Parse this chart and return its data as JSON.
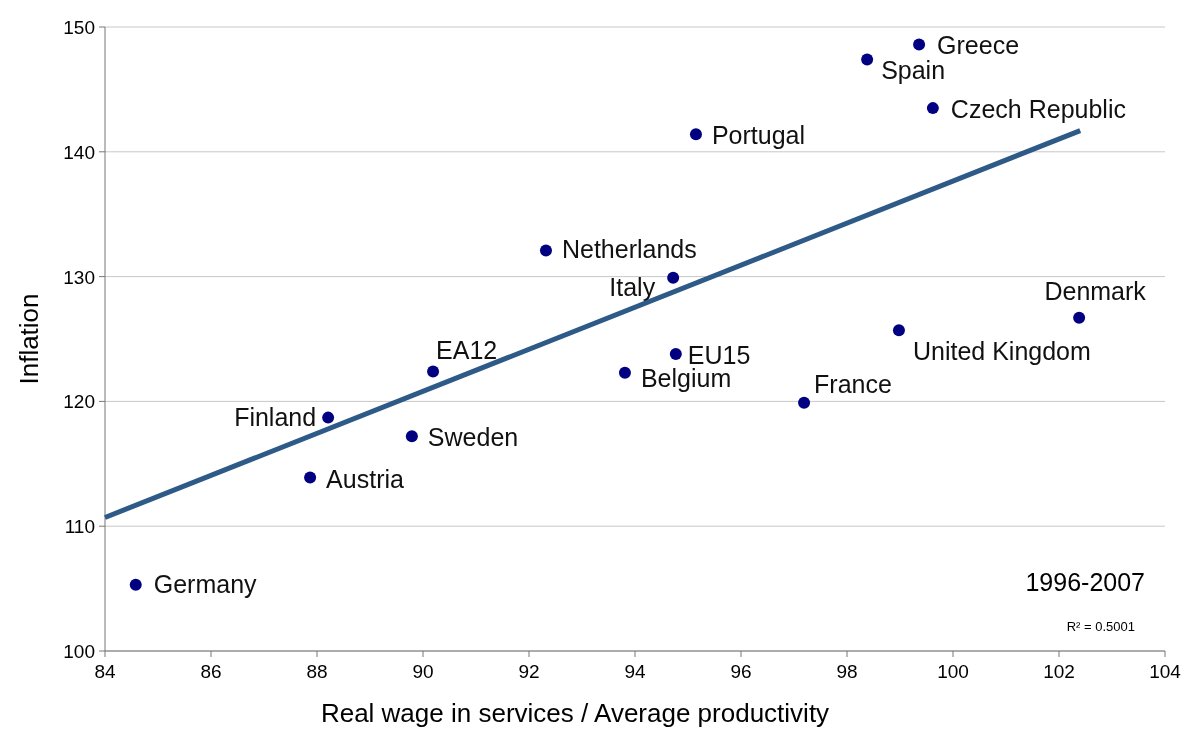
{
  "chart_data": {
    "type": "scatter",
    "xlabel": "Real wage in services / Average productivity",
    "ylabel": "Inflation",
    "xlim": [
      84,
      104
    ],
    "xticks": [
      84,
      86,
      88,
      90,
      92,
      94,
      96,
      98,
      100,
      102,
      104
    ],
    "ylim": [
      100,
      150
    ],
    "yticks": [
      100,
      110,
      120,
      130,
      140,
      150
    ],
    "grid": "y",
    "marker": "circle",
    "series": [
      {
        "name": "Germany",
        "color": "#000080",
        "x": [
          84.58
        ],
        "values": [
          105.3
        ]
      },
      {
        "name": "Austria",
        "color": "#000080",
        "x": [
          87.87
        ],
        "values": [
          113.9
        ]
      },
      {
        "name": "Finland",
        "color": "#000080",
        "x": [
          88.21
        ],
        "values": [
          118.7
        ]
      },
      {
        "name": "Sweden",
        "color": "#000080",
        "x": [
          89.79
        ],
        "values": [
          117.2
        ]
      },
      {
        "name": "EA12",
        "color": "#000080",
        "x": [
          90.19
        ],
        "values": [
          122.4
        ]
      },
      {
        "name": "Netherlands",
        "color": "#000080",
        "x": [
          92.32
        ],
        "values": [
          132.1
        ]
      },
      {
        "name": "Belgium",
        "color": "#000080",
        "x": [
          93.81
        ],
        "values": [
          122.3
        ]
      },
      {
        "name": "Italy",
        "color": "#000080",
        "x": [
          94.72
        ],
        "values": [
          129.9
        ]
      },
      {
        "name": "EU15",
        "color": "#000080",
        "x": [
          94.77
        ],
        "values": [
          123.8
        ]
      },
      {
        "name": "Portugal",
        "color": "#000080",
        "x": [
          95.15
        ],
        "values": [
          141.4
        ]
      },
      {
        "name": "France",
        "color": "#000080",
        "x": [
          97.19
        ],
        "values": [
          119.9
        ]
      },
      {
        "name": "United Kingdom",
        "color": "#000080",
        "x": [
          98.98
        ],
        "values": [
          125.7
        ]
      },
      {
        "name": "Spain",
        "color": "#000080",
        "x": [
          98.38
        ],
        "values": [
          147.4
        ]
      },
      {
        "name": "Greece",
        "color": "#000080",
        "x": [
          99.36
        ],
        "values": [
          148.6
        ]
      },
      {
        "name": "Czech Republic",
        "color": "#000080",
        "x": [
          99.62
        ],
        "values": [
          143.5
        ]
      },
      {
        "name": "Denmark",
        "color": "#000080",
        "x": [
          102.38
        ],
        "values": [
          126.7
        ]
      },
      {
        "type": "line",
        "color": "#2e5a88",
        "x": [
          84.0,
          102.4
        ],
        "values": [
          110.7,
          141.7
        ],
        "marker": "none"
      }
    ],
    "annotations": [
      "1996-2007",
      "R² = 0.5001"
    ]
  }
}
